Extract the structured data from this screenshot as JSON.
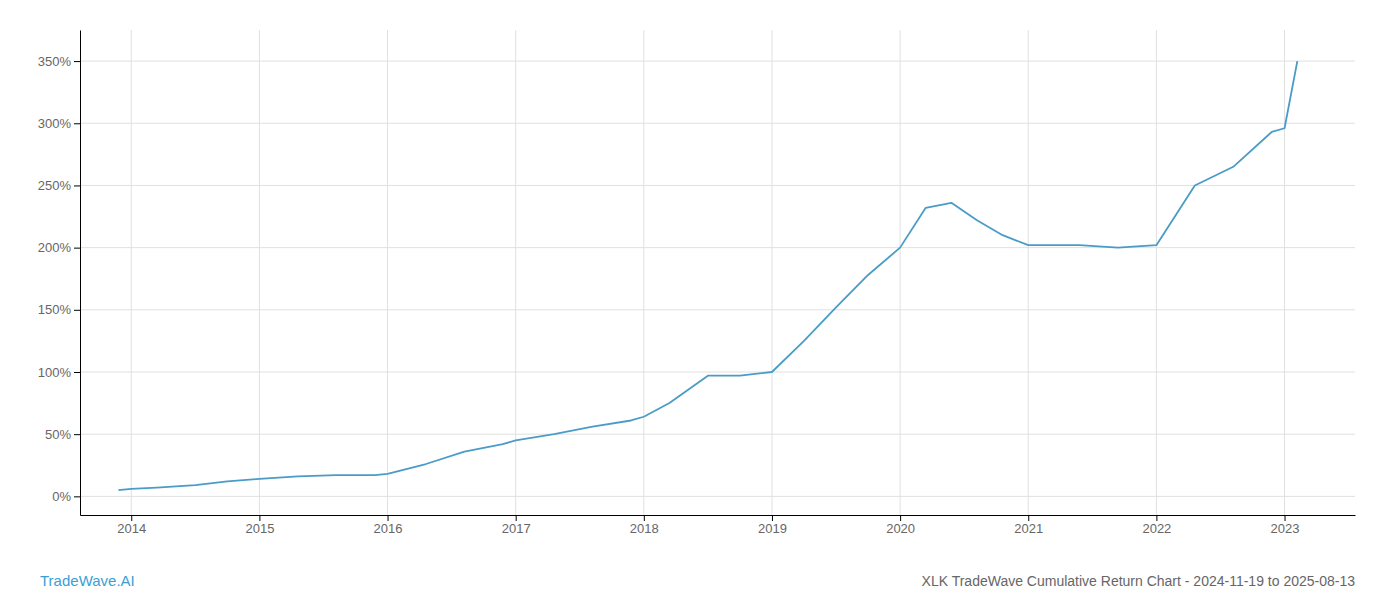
{
  "chart_data": {
    "type": "line",
    "title": "XLK TradeWave Cumulative Return Chart - 2024-11-19 to 2025-08-13",
    "annotations": [
      "TradeWave.AI"
    ],
    "color": "#4a9cc7",
    "grid": true,
    "x": [
      2013.9,
      2014.0,
      2014.2,
      2014.5,
      2014.75,
      2015.0,
      2015.3,
      2015.6,
      2015.9,
      2016.0,
      2016.3,
      2016.6,
      2016.9,
      2017.0,
      2017.3,
      2017.6,
      2017.9,
      2018.0,
      2018.2,
      2018.5,
      2018.75,
      2019.0,
      2019.25,
      2019.5,
      2019.75,
      2020.0,
      2020.2,
      2020.4,
      2020.6,
      2020.8,
      2021.0,
      2021.4,
      2021.7,
      2022.0,
      2022.3,
      2022.6,
      2022.9,
      2023.0,
      2023.1
    ],
    "values": [
      5,
      6,
      7,
      9,
      12,
      14,
      16,
      17,
      17,
      18,
      26,
      36,
      42,
      45,
      50,
      56,
      61,
      64,
      75,
      97,
      97,
      100,
      125,
      152,
      178,
      200,
      232,
      236,
      222,
      210,
      202,
      202,
      200,
      202,
      250,
      265,
      293,
      296,
      350
    ],
    "xlim": [
      2013.6,
      2023.55
    ],
    "xticks": [
      2014,
      2015,
      2016,
      2017,
      2018,
      2019,
      2020,
      2021,
      2022,
      2023
    ],
    "ylim": [
      -15,
      375
    ],
    "yticks": [
      {
        "value": 0,
        "label": "0%"
      },
      {
        "value": 50,
        "label": "50%"
      },
      {
        "value": 100,
        "label": "100%"
      },
      {
        "value": 150,
        "label": "150%"
      },
      {
        "value": 200,
        "label": "200%"
      },
      {
        "value": 250,
        "label": "250%"
      },
      {
        "value": 300,
        "label": "300%"
      },
      {
        "value": 350,
        "label": "350%"
      }
    ]
  }
}
